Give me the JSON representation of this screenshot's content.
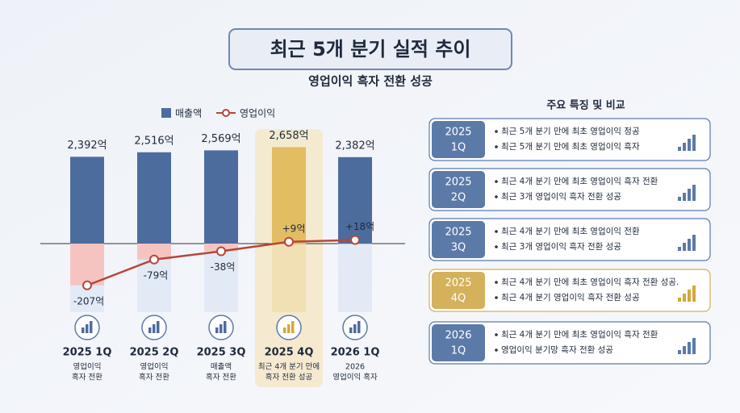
{
  "chart_data": {
    "type": "bar",
    "title": "최근 5개 분기 실적 추이",
    "subtitle": "영업이익 흑자 전환 성공",
    "categories": [
      "2025 1Q",
      "2025 2Q",
      "2025 3Q",
      "2025 4Q",
      "2026 1Q"
    ],
    "captions": [
      [
        "영업이익",
        "흑자 전환"
      ],
      [
        "영업이익",
        "흑자 전환"
      ],
      [
        "매출액",
        "흑자 전환"
      ],
      [
        "최근 4개 분기 만에",
        "흑자 전환 성공"
      ],
      [
        "2026",
        "영업이익 흑자"
      ]
    ],
    "series": [
      {
        "name": "매출액",
        "type": "bar",
        "color": "#4d6c9e",
        "colors": [
          "#4d6c9e",
          "#4d6c9e",
          "#4d6c9e",
          "#e3bd62",
          "#4d6c9e"
        ],
        "values": [
          2392,
          2516,
          2569,
          2658,
          2382
        ],
        "value_labels": [
          "2,392억",
          "2,516억",
          "2,569억",
          "2,658억",
          "2,382억"
        ]
      },
      {
        "name": "영업이익",
        "type": "line",
        "color": "#b5473a",
        "values": [
          -207,
          -79,
          -38,
          9,
          18
        ],
        "value_labels": [
          "-207억",
          "-79억",
          "-38억",
          "+9억",
          "+18억"
        ]
      }
    ]
  },
  "features": {
    "title": "주요 특징 및 비교",
    "items": [
      {
        "year": "2025",
        "quarter": "1Q",
        "color": "#5b7aa8",
        "points": [
          "최근 5개 분기 만에 최초 영업이익 정공",
          "최근 5개 분기 만에 최초 영업이익 흑자"
        ]
      },
      {
        "year": "2025",
        "quarter": "2Q",
        "color": "#5b7aa8",
        "points": [
          "최근 4개 분기 만에 최초 영업이익 흑자 전환",
          "최근 3개 영업이익 흑자 전환 성공"
        ]
      },
      {
        "year": "2025",
        "quarter": "3Q",
        "color": "#5b7aa8",
        "points": [
          "최근 4개 분기 만에 최초 영업이익 전환",
          "최근 3개 영업이익 흑자 전환 성공"
        ]
      },
      {
        "year": "2025",
        "quarter": "4Q",
        "color": "#d4b15a",
        "points": [
          "최근 4개 분기 만에 최초 영업이익 흑자 전환 성공.",
          "최근 4개 분기 영업이익 흑자 전환 성공"
        ]
      },
      {
        "year": "2026",
        "quarter": "1Q",
        "color": "#5b7aa8",
        "points": [
          "최근 4개 분기 만에 최초 영업이익 흑자 전환",
          "영업이익 분기망 흑자 전환 성공"
        ]
      }
    ]
  }
}
